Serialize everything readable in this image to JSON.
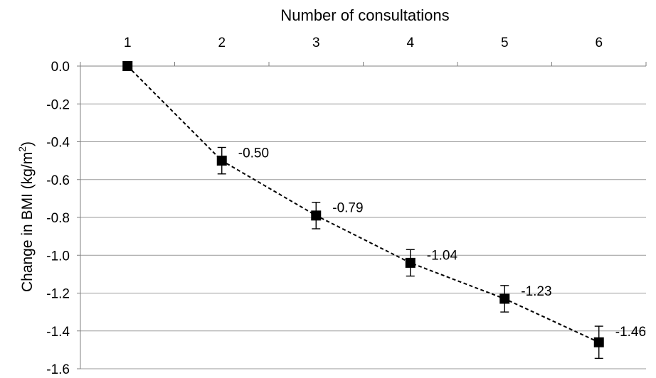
{
  "chart_data": {
    "type": "line",
    "title": "",
    "xlabel": "Number of consultations",
    "ylabel": "Change in BMI (kg/m",
    "ylabel_superscript": "2",
    "ylabel_suffix": ")",
    "x_axis_position": "top",
    "x": [
      1,
      2,
      3,
      4,
      5,
      6
    ],
    "x_tick_labels": [
      "1",
      "2",
      "3",
      "4",
      "5",
      "6"
    ],
    "ylim": [
      -1.6,
      0.0
    ],
    "y_ticks": [
      0.0,
      -0.2,
      -0.4,
      -0.6,
      -0.8,
      -1.0,
      -1.2,
      -1.4,
      -1.6
    ],
    "y_tick_labels": [
      "0.0",
      "-0.2",
      "-0.4",
      "-0.6",
      "-0.8",
      "-1.0",
      "-1.2",
      "-1.4",
      "-1.6"
    ],
    "grid": true,
    "legend": "none",
    "series": [
      {
        "values": [
          0.0,
          -0.5,
          -0.79,
          -1.04,
          -1.23,
          -1.46
        ],
        "error": [
          0.0,
          0.07,
          0.07,
          0.07,
          0.07,
          0.085
        ],
        "data_labels": [
          "",
          "-0.50",
          "-0.79",
          "-1.04",
          "-1.23",
          "-1.46"
        ],
        "line_style": "dashed",
        "marker": "square",
        "color": "#000000"
      }
    ]
  }
}
